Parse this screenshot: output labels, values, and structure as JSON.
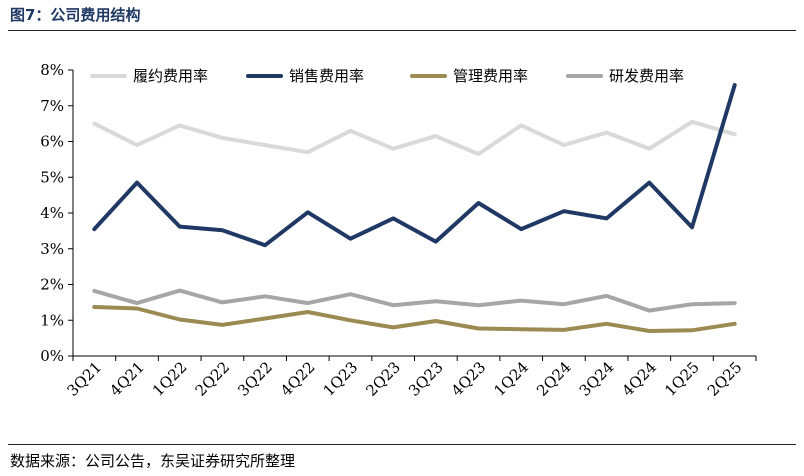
{
  "header": {
    "title": "图7：公司费用结构"
  },
  "footer": {
    "source": "数据来源：公司公告，东吴证券研究所整理"
  },
  "chart_data": {
    "type": "line",
    "categories": [
      "3Q21",
      "4Q21",
      "1Q22",
      "2Q22",
      "3Q22",
      "4Q22",
      "1Q23",
      "2Q23",
      "3Q23",
      "4Q23",
      "1Q24",
      "2Q24",
      "3Q24",
      "4Q24",
      "1Q25",
      "2Q25"
    ],
    "y_ticks": [
      "0%",
      "1%",
      "2%",
      "3%",
      "4%",
      "5%",
      "6%",
      "7%",
      "8%"
    ],
    "ylim": [
      0,
      8
    ],
    "legend_position": "top",
    "grid": false,
    "series": [
      {
        "name": "履约费用率",
        "color": "#d9d9d9",
        "values": [
          6.5,
          5.9,
          6.45,
          6.1,
          5.9,
          5.7,
          6.3,
          5.8,
          6.15,
          5.65,
          6.45,
          5.9,
          6.25,
          5.8,
          6.55,
          6.2
        ]
      },
      {
        "name": "销售费用率",
        "color": "#1f3864",
        "values": [
          3.55,
          4.85,
          3.62,
          3.52,
          3.1,
          4.02,
          3.28,
          3.85,
          3.2,
          4.28,
          3.55,
          4.05,
          3.85,
          4.85,
          3.6,
          7.58
        ]
      },
      {
        "name": "管理费用率",
        "color": "#9b8b52",
        "values": [
          1.37,
          1.33,
          1.02,
          0.87,
          1.05,
          1.23,
          1.0,
          0.8,
          0.98,
          0.77,
          0.75,
          0.73,
          0.9,
          0.7,
          0.72,
          0.9
        ]
      },
      {
        "name": "研发费用率",
        "color": "#a6a6a6",
        "values": [
          1.82,
          1.48,
          1.83,
          1.5,
          1.67,
          1.48,
          1.73,
          1.42,
          1.53,
          1.42,
          1.55,
          1.45,
          1.68,
          1.27,
          1.45,
          1.48
        ]
      }
    ]
  }
}
